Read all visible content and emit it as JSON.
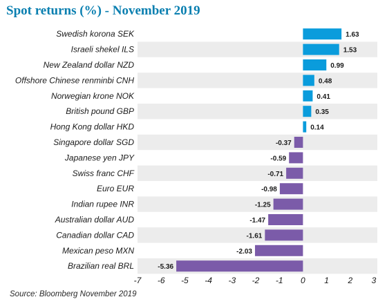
{
  "chart_data": {
    "type": "bar",
    "orientation": "horizontal",
    "title": "Spot returns (%) - November 2019",
    "source": "Source: Bloomberg November 2019",
    "categories": [
      "Swedish korona SEK",
      "Israeli shekel ILS",
      "New Zealand dollar NZD",
      "Offshore Chinese renminbi CNH",
      "Norwegian krone NOK",
      "British pound GBP",
      "Hong Kong dollar HKD",
      "Singapore dollar SGD",
      "Japanese yen JPY",
      "Swiss franc CHF",
      "Euro EUR",
      "Indian rupee INR",
      "Australian dollar AUD",
      "Canadian dollar CAD",
      "Mexican peso MXN",
      "Brazilian real BRL"
    ],
    "values": [
      1.63,
      1.53,
      0.99,
      0.48,
      0.41,
      0.35,
      0.14,
      -0.37,
      -0.59,
      -0.71,
      -0.98,
      -1.25,
      -1.47,
      -1.61,
      -2.03,
      -5.36
    ],
    "value_labels": [
      "1.63",
      "1.53",
      "0.99",
      "0.48",
      "0.41",
      "0.35",
      "0.14",
      "-0.37",
      "-0.59",
      "-0.71",
      "-0.98",
      "-1.25",
      "-1.47",
      "-1.61",
      "-2.03",
      "-5.36"
    ],
    "xlim": [
      -7,
      3
    ],
    "xticks": [
      -7,
      -6,
      -5,
      -4,
      -3,
      -2,
      -1,
      0,
      1,
      2,
      3
    ],
    "xtick_labels": [
      "-7",
      "-6",
      "-5",
      "-4",
      "-3",
      "-2",
      "-1",
      "0",
      "1",
      "2",
      "3"
    ],
    "xlabel": "",
    "ylabel": "",
    "grid": false,
    "legend": "none",
    "colors": {
      "positive": "#0a9cdc",
      "negative": "#7b5ba9",
      "title": "#0a7fb0",
      "row_band": "#ececec"
    }
  }
}
